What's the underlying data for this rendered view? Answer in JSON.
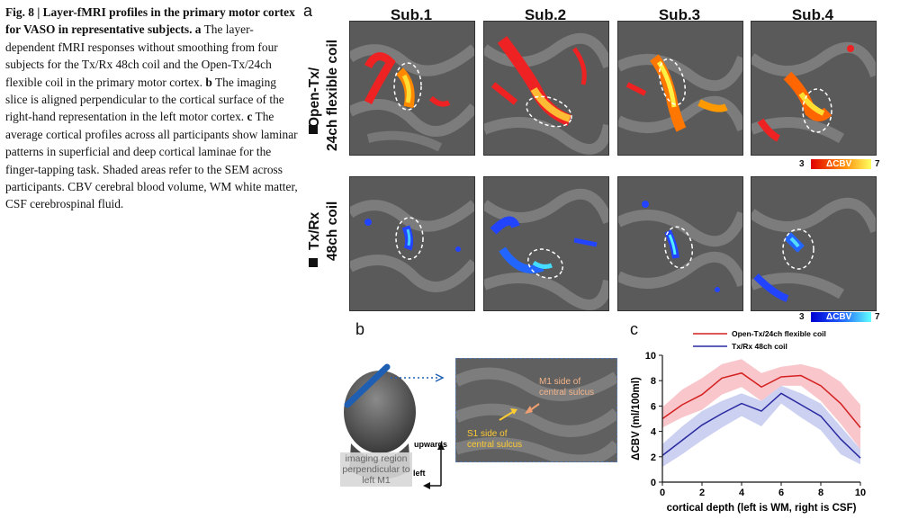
{
  "caption": {
    "fig_label": "Fig. 8 | Layer-fMRI profiles in the primary motor cortex for VASO in representative subjects.",
    "a_label": "a",
    "a_text": "The layer-dependent fMRI responses without smoothing from four subjects for the Tx/Rx 48ch coil and the Open-Tx/24ch flexible coil in the primary motor cortex.",
    "b_label": "b",
    "b_text": "The imaging slice is aligned perpendicular to the cortical surface of the right-hand representation in the left motor cortex.",
    "c_label": "c",
    "c_text": "The average cortical profiles across all participants show laminar patterns in superficial and deep cortical laminae for the finger-tapping task. Shaded areas refer to the SEM across participants. CBV cerebral blood volume, WM white matter, CSF cerebrospinal fluid."
  },
  "panel_a": {
    "label": "a",
    "subjects": [
      "Sub.1",
      "Sub.2",
      "Sub.3",
      "Sub.4"
    ],
    "row1_label_line1": "Open-Tx/",
    "row1_label_line2": "24ch flexible coil",
    "row2_label_line1": "Tx/Rx",
    "row2_label_line2": "48ch coil",
    "cbar_warm": {
      "min": "3",
      "label": "ΔCBV",
      "max": "7",
      "start": "#e00000",
      "end": "#ffff60"
    },
    "cbar_cool": {
      "min": "3",
      "label": "ΔCBV",
      "max": "7",
      "start": "#0000d0",
      "end": "#60ffff"
    }
  },
  "panel_b": {
    "label": "b",
    "m1_line1": "M1 side of",
    "m1_line2": "central sulcus",
    "s1_line1": "S1 side of",
    "s1_line2": "central sulcus",
    "region_line1": "imaging region",
    "region_line2": "perpendicular to",
    "region_line3": "left M1",
    "upwards": "upwards",
    "left": "left"
  },
  "panel_c": {
    "label": "c"
  },
  "chart_data": {
    "type": "line",
    "xlabel": "cortical depth (left is WM, right is CSF)",
    "ylabel": "ΔCBV (ml/100ml)",
    "xlim": [
      0,
      10
    ],
    "ylim": [
      0,
      10
    ],
    "xticks": [
      "0",
      "2",
      "4",
      "6",
      "8",
      "10"
    ],
    "yticks": [
      "0",
      "2",
      "4",
      "6",
      "8",
      "10"
    ],
    "legend_position": "top-left",
    "x": [
      0,
      1,
      2,
      3,
      4,
      5,
      6,
      7,
      8,
      9,
      10
    ],
    "series": [
      {
        "name": "Open-Tx/24ch flexible coil",
        "color": "#d42020",
        "band_color": "#f4a0a8",
        "values": [
          5.0,
          6.1,
          6.9,
          8.2,
          8.6,
          7.5,
          8.3,
          8.4,
          7.6,
          6.2,
          4.3
        ],
        "lower": [
          4.3,
          5.1,
          5.7,
          6.9,
          7.5,
          6.4,
          7.6,
          7.6,
          6.4,
          4.6,
          2.6
        ],
        "upper": [
          5.9,
          7.3,
          8.2,
          9.3,
          9.7,
          8.6,
          9.1,
          9.3,
          8.9,
          7.9,
          6.1
        ]
      },
      {
        "name": "Tx/Rx 48ch coil",
        "color": "#2a2aa0",
        "band_color": "#aab0e8",
        "values": [
          2.1,
          3.3,
          4.5,
          5.4,
          6.2,
          5.6,
          7.0,
          6.1,
          5.2,
          3.4,
          1.9
        ],
        "lower": [
          1.2,
          2.2,
          3.3,
          4.3,
          5.2,
          4.4,
          6.2,
          5.1,
          4.1,
          2.2,
          1.4
        ],
        "upper": [
          3.0,
          4.4,
          5.6,
          6.4,
          7.0,
          6.4,
          7.6,
          7.0,
          6.2,
          4.4,
          2.6
        ]
      }
    ]
  }
}
